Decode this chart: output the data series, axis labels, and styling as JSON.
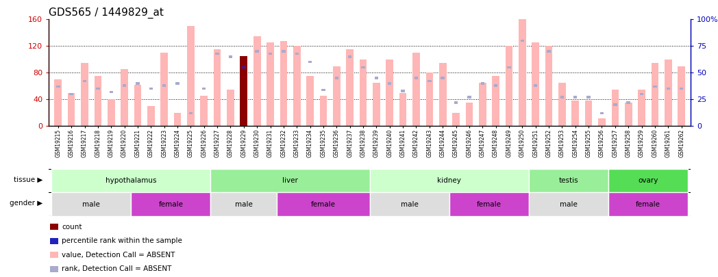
{
  "title": "GDS565 / 1449829_at",
  "samples": [
    "GSM19215",
    "GSM19216",
    "GSM19217",
    "GSM19218",
    "GSM19219",
    "GSM19220",
    "GSM19221",
    "GSM19222",
    "GSM19223",
    "GSM19224",
    "GSM19225",
    "GSM19226",
    "GSM19227",
    "GSM19228",
    "GSM19229",
    "GSM19230",
    "GSM19231",
    "GSM19232",
    "GSM19233",
    "GSM19234",
    "GSM19235",
    "GSM19236",
    "GSM19237",
    "GSM19238",
    "GSM19239",
    "GSM19240",
    "GSM19241",
    "GSM19242",
    "GSM19243",
    "GSM19244",
    "GSM19245",
    "GSM19246",
    "GSM19247",
    "GSM19248",
    "GSM19249",
    "GSM19250",
    "GSM19251",
    "GSM19252",
    "GSM19253",
    "GSM19254",
    "GSM19255",
    "GSM19256",
    "GSM19257",
    "GSM19258",
    "GSM19259",
    "GSM19260",
    "GSM19261",
    "GSM19262"
  ],
  "values": [
    70,
    50,
    95,
    75,
    40,
    85,
    62,
    30,
    110,
    20,
    150,
    45,
    115,
    55,
    105,
    135,
    125,
    128,
    120,
    75,
    45,
    90,
    115,
    100,
    65,
    100,
    50,
    110,
    80,
    95,
    20,
    35,
    65,
    75,
    120,
    160,
    125,
    120,
    65,
    38,
    38,
    12,
    55,
    35,
    55,
    95,
    100,
    90
  ],
  "ranks_pct": [
    37,
    30,
    42,
    35,
    32,
    38,
    40,
    35,
    38,
    40,
    12,
    35,
    68,
    65,
    55,
    70,
    68,
    70,
    68,
    60,
    34,
    45,
    65,
    55,
    45,
    40,
    33,
    45,
    42,
    45,
    22,
    27,
    40,
    38,
    55,
    80,
    38,
    70,
    27,
    27,
    27,
    12,
    20,
    22,
    30,
    37,
    35,
    35
  ],
  "is_highlighted": [
    false,
    false,
    false,
    false,
    false,
    false,
    false,
    false,
    false,
    false,
    false,
    false,
    false,
    false,
    true,
    false,
    false,
    false,
    false,
    false,
    false,
    false,
    false,
    false,
    false,
    false,
    false,
    false,
    false,
    false,
    false,
    false,
    false,
    false,
    false,
    false,
    false,
    false,
    false,
    false,
    false,
    false,
    false,
    false,
    false,
    false,
    false,
    false
  ],
  "bar_color_normal": "#FFB6B6",
  "bar_color_highlight": "#8B0000",
  "rank_color_normal": "#AAAACC",
  "rank_color_highlight": "#2222BB",
  "ylim_left": [
    0,
    160
  ],
  "ylim_right": [
    0,
    100
  ],
  "yticks_left": [
    0,
    40,
    80,
    120,
    160
  ],
  "yticks_right": [
    0,
    25,
    50,
    75,
    100
  ],
  "grid_lines": [
    40,
    80,
    120
  ],
  "tissues": [
    {
      "label": "hypothalamus",
      "start": 0,
      "end": 12,
      "color": "#CCFFCC"
    },
    {
      "label": "liver",
      "start": 12,
      "end": 24,
      "color": "#99EE99"
    },
    {
      "label": "kidney",
      "start": 24,
      "end": 36,
      "color": "#CCFFCC"
    },
    {
      "label": "testis",
      "start": 36,
      "end": 42,
      "color": "#99EE99"
    },
    {
      "label": "ovary",
      "start": 42,
      "end": 48,
      "color": "#55DD55"
    }
  ],
  "genders": [
    {
      "label": "male",
      "start": 0,
      "end": 6,
      "color": "#DDDDDD"
    },
    {
      "label": "female",
      "start": 6,
      "end": 12,
      "color": "#CC44CC"
    },
    {
      "label": "male",
      "start": 12,
      "end": 17,
      "color": "#DDDDDD"
    },
    {
      "label": "female",
      "start": 17,
      "end": 24,
      "color": "#CC44CC"
    },
    {
      "label": "male",
      "start": 24,
      "end": 30,
      "color": "#DDDDDD"
    },
    {
      "label": "female",
      "start": 30,
      "end": 36,
      "color": "#CC44CC"
    },
    {
      "label": "male",
      "start": 36,
      "end": 42,
      "color": "#DDDDDD"
    },
    {
      "label": "female",
      "start": 42,
      "end": 48,
      "color": "#CC44CC"
    }
  ],
  "legend_items": [
    {
      "color": "#8B0000",
      "label": "count"
    },
    {
      "color": "#2222BB",
      "label": "percentile rank within the sample"
    },
    {
      "color": "#FFB6B6",
      "label": "value, Detection Call = ABSENT"
    },
    {
      "color": "#AAAACC",
      "label": "rank, Detection Call = ABSENT"
    }
  ],
  "title_fontsize": 11,
  "left_axis_color": "#CC0000",
  "right_axis_color": "#0000BB"
}
